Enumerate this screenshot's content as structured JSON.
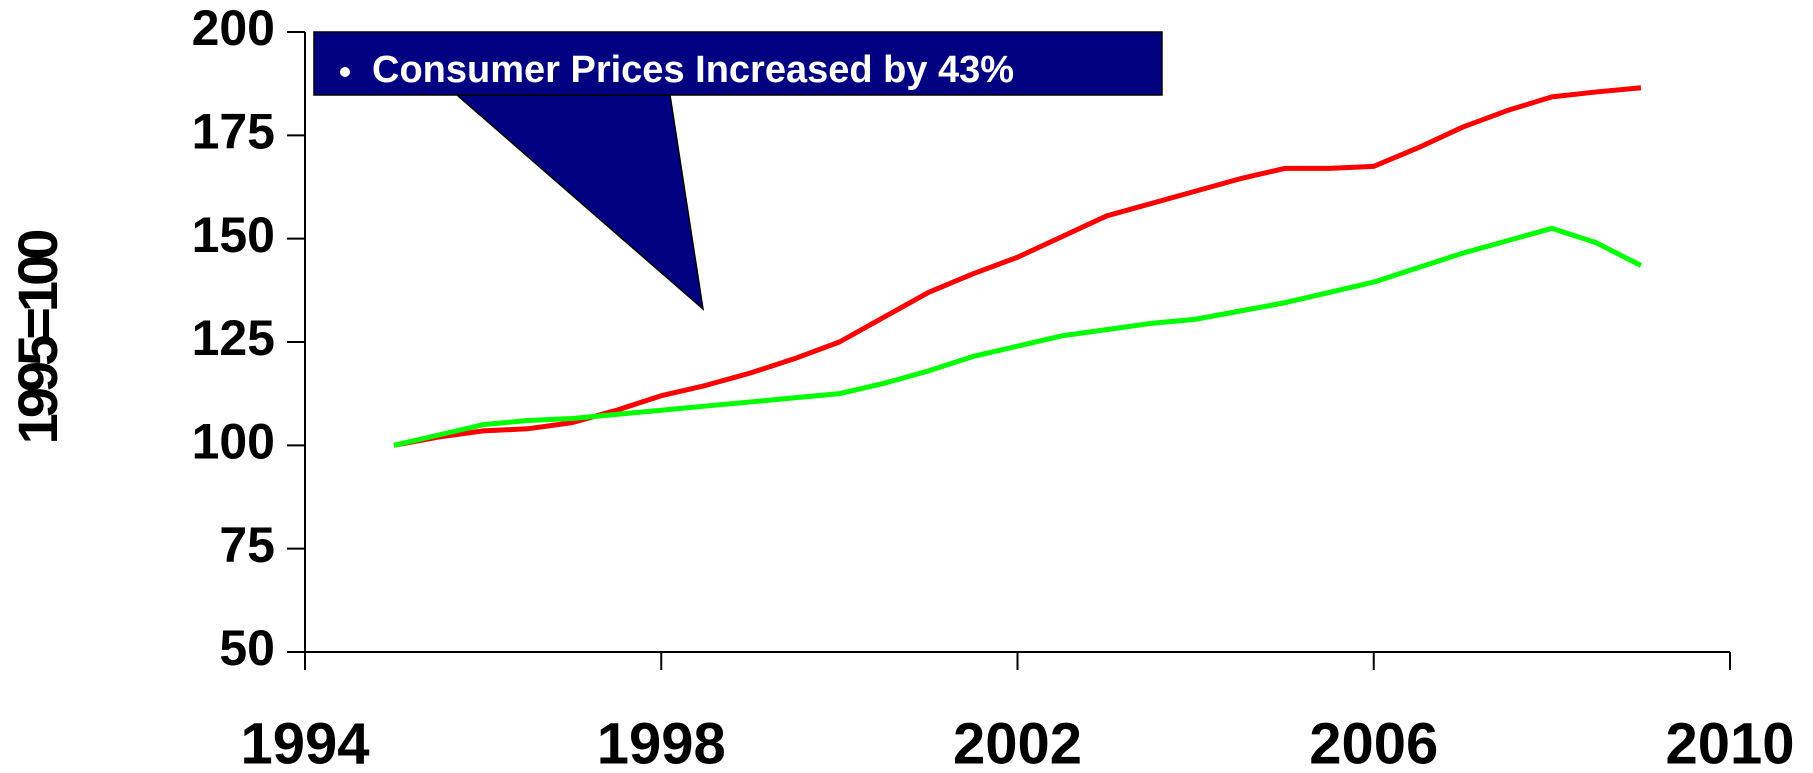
{
  "chart_data": {
    "type": "line",
    "y_label": "1995=100",
    "annotation": "Consumer Prices Increased by 43%",
    "x": [
      1995,
      1995.5,
      1996,
      1996.5,
      1997,
      1997.5,
      1998,
      1998.5,
      1999,
      1999.5,
      2000,
      2000.5,
      2001,
      2001.5,
      2002,
      2002.5,
      2003,
      2003.5,
      2004,
      2004.5,
      2005,
      2005.5,
      2006,
      2006.5,
      2007,
      2007.5,
      2008,
      2008.5,
      2009
    ],
    "series": [
      {
        "color": "#ff0000",
        "values": [
          100,
          102,
          103.5,
          104,
          105.5,
          108.5,
          112,
          114.5,
          117.5,
          121,
          125,
          131,
          137,
          141.5,
          145.5,
          150.5,
          155.5,
          158.5,
          161.5,
          164.5,
          167,
          167,
          167.5,
          172,
          177,
          181,
          184.3,
          185.5,
          186.5
        ]
      },
      {
        "color": "#00ff00",
        "values": [
          100,
          102.5,
          105,
          106,
          106.5,
          107.5,
          108.5,
          109.5,
          110.5,
          111.5,
          112.5,
          115,
          118,
          121.5,
          124,
          126.5,
          128,
          129.5,
          130.5,
          132.5,
          134.5,
          137,
          139.5,
          143,
          146.5,
          149.5,
          152.5,
          149,
          143.5
        ]
      }
    ],
    "xlim": [
      1994,
      2010
    ],
    "xticks": [
      1994,
      1998,
      2002,
      2006,
      2010
    ],
    "ylim": [
      50,
      200
    ],
    "yticks": [
      50,
      75,
      100,
      125,
      150,
      175,
      200
    ]
  }
}
